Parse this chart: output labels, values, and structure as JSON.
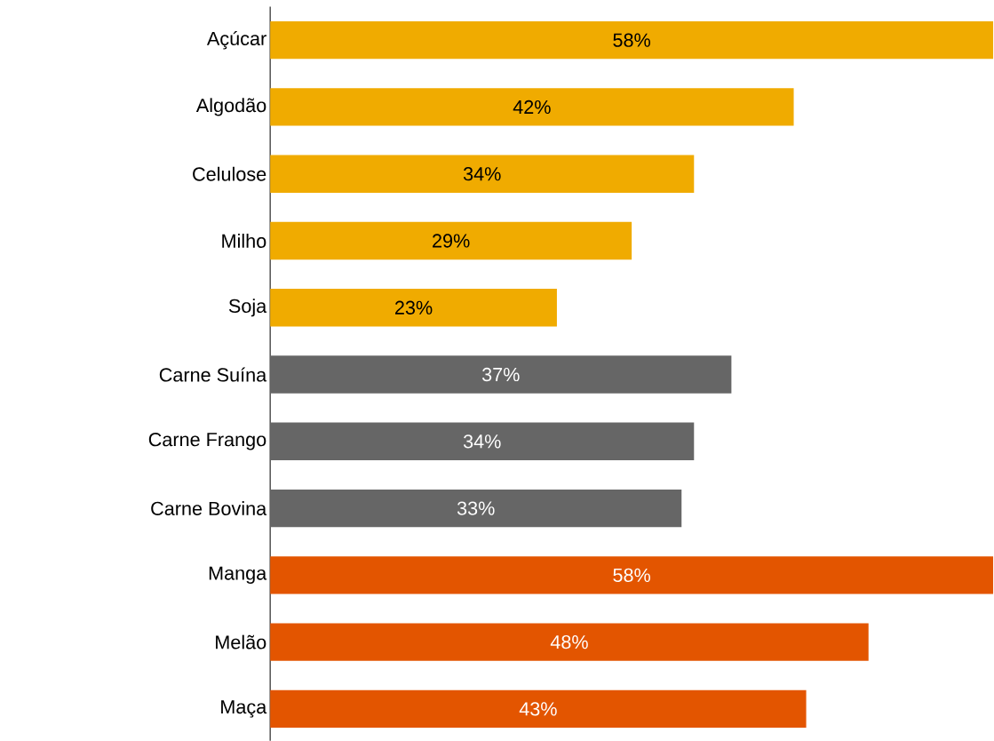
{
  "chart_data": {
    "type": "bar",
    "orientation": "horizontal",
    "categories": [
      "Açúcar",
      "Algodão",
      "Celulose",
      "Milho",
      "Soja",
      "Carne Suína",
      "Carne Frango",
      "Carne Bovina",
      "Manga",
      "Melão",
      "Maça"
    ],
    "values": [
      58,
      42,
      34,
      29,
      23,
      37,
      34,
      33,
      58,
      48,
      43
    ],
    "colors": [
      "#f0ab00",
      "#f0ab00",
      "#f0ab00",
      "#f0ab00",
      "#f0ab00",
      "#666666",
      "#666666",
      "#666666",
      "#e35500",
      "#e35500",
      "#e35500"
    ],
    "value_labels": [
      "58%",
      "42%",
      "34%",
      "29%",
      "23%",
      "37%",
      "34%",
      "33%",
      "58%",
      "48%",
      "43%"
    ],
    "xlim": [
      0,
      58
    ],
    "tick_labels": "y"
  }
}
